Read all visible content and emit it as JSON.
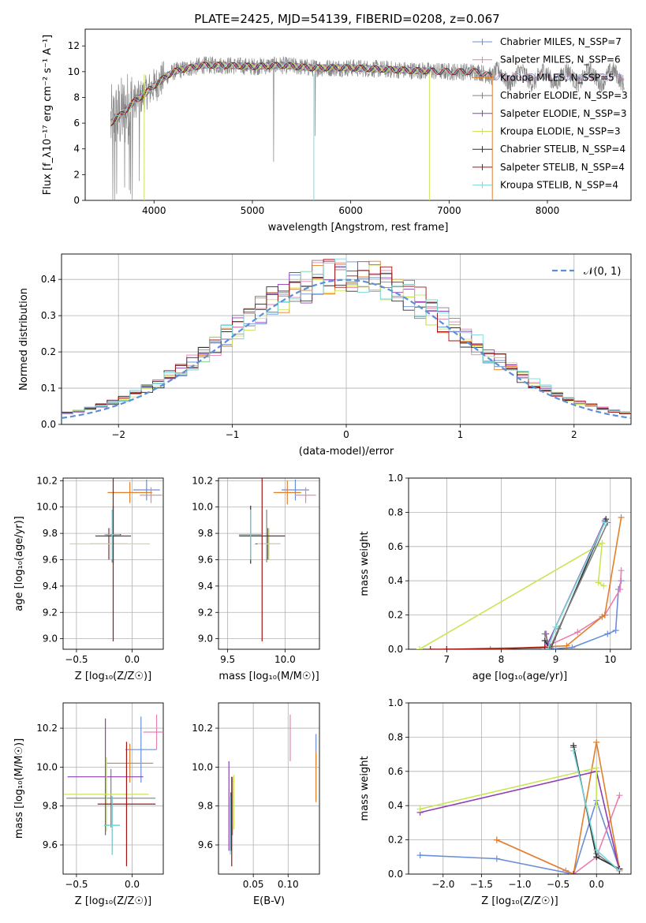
{
  "figure": {
    "title": "PLATE=2425, MJD=54139, FIBERID=0208, z=0.067"
  },
  "colors": {
    "c_miles": "#6a8fd8",
    "s_miles": "#e87fb0",
    "k_miles": "#e37f29",
    "c_elodie": "#808080",
    "s_elodie": "#8e3fb4",
    "k_elodie": "#c9e555",
    "c_stelib": "#303030",
    "s_stelib": "#a01414",
    "k_stelib": "#7ad8d8",
    "data": "#888888",
    "gauss": "#5b8fd8"
  },
  "chart_data": [
    {
      "id": "spectrum",
      "type": "line",
      "xlabel": "wavelength [Angstrom, rest frame]",
      "ylabel": "Flux [f_λ10⁻¹⁷ erg cm⁻² s⁻¹ A⁻¹]",
      "xlim": [
        3300,
        8850
      ],
      "ylim": [
        0,
        13.3
      ],
      "xticks": [
        4000,
        5000,
        6000,
        7000,
        8000
      ],
      "yticks": [
        0,
        2,
        4,
        6,
        8,
        10,
        12
      ],
      "grid": false,
      "legend": "top-right",
      "continuum": {
        "x": [
          3560,
          3700,
          3800,
          3900,
          3950,
          4000,
          4100,
          4200,
          4300,
          4500,
          4700,
          5000,
          5300,
          5600,
          6000,
          6300,
          6600,
          7000,
          7300,
          7440
        ],
        "y": [
          6.0,
          6.9,
          7.7,
          8.2,
          8.6,
          8.9,
          9.5,
          10.0,
          10.2,
          10.5,
          10.5,
          10.4,
          10.5,
          10.3,
          10.3,
          10.2,
          10.1,
          10.0,
          10.0,
          9.6
        ]
      },
      "series": [
        {
          "name": "Chabrier MILES, N_SSP=7",
          "color_key": "c_miles",
          "x_end": 8780
        },
        {
          "name": "Salpeter MILES, N_SSP=6",
          "color_key": "s_miles",
          "x_end": 8780
        },
        {
          "name": "Kroupa MILES, N_SSP=5",
          "color_key": "k_miles",
          "x_end": 7440
        },
        {
          "name": "Chabrier ELODIE, N_SSP=3",
          "color_key": "c_elodie",
          "x_end": 6800
        },
        {
          "name": "Salpeter ELODIE, N_SSP=3",
          "color_key": "s_elodie",
          "x_end": 6800
        },
        {
          "name": "Kroupa ELODIE, N_SSP=3",
          "color_key": "k_elodie",
          "x_end": 6800
        },
        {
          "name": "Chabrier STELIB, N_SSP=4",
          "color_key": "c_stelib",
          "x_end": 7440
        },
        {
          "name": "Salpeter STELIB, N_SSP=4",
          "color_key": "s_stelib",
          "x_end": 7440
        },
        {
          "name": "Kroupa STELIB, N_SSP=4",
          "color_key": "k_stelib",
          "x_end": 7440
        }
      ]
    },
    {
      "id": "residuals",
      "type": "step",
      "xlabel": "(data-model)/error",
      "ylabel": "Normed distribution",
      "xlim": [
        -2.5,
        2.5
      ],
      "ylim": [
        0,
        0.47
      ],
      "xticks": [
        -2,
        -1,
        0,
        1,
        2
      ],
      "yticks": [
        0.0,
        0.1,
        0.2,
        0.3,
        0.4
      ],
      "grid": true,
      "legend": "top-right",
      "gauss_label": "𝒩(0, 1)",
      "bin_width": 0.1,
      "series_keys": [
        "c_miles",
        "s_miles",
        "k_miles",
        "c_elodie",
        "s_elodie",
        "k_elodie",
        "c_stelib",
        "s_stelib",
        "k_stelib"
      ]
    },
    {
      "id": "z_age",
      "type": "errorbar",
      "xlabel": "Z [log₁₀(Z/Z☉)]",
      "ylabel": "age  [log₁₀(age/yr)]",
      "xlim": [
        -0.62,
        0.28
      ],
      "ylim": [
        8.92,
        10.22
      ],
      "xticks": [
        -0.5,
        0.0
      ],
      "xticklabels": [
        "−0.5",
        "0.0"
      ],
      "yticks": [
        9.0,
        9.2,
        9.4,
        9.6,
        9.8,
        10.0,
        10.2
      ],
      "grid": true,
      "points": [
        {
          "c": "c_miles",
          "x": 0.13,
          "y": 10.13,
          "xe": 0.12,
          "ye": 0.08
        },
        {
          "c": "s_miles",
          "x": 0.17,
          "y": 10.09,
          "xe": 0.1,
          "ye": 0.06
        },
        {
          "c": "k_miles",
          "x": -0.02,
          "y": 10.11,
          "xe": 0.2,
          "ye": 0.08
        },
        {
          "c": "c_elodie",
          "x": -0.18,
          "y": 9.78,
          "xe": 0.05,
          "ye": 0.2
        },
        {
          "c": "s_elodie",
          "x": -0.21,
          "y": 9.72,
          "xe": 0.17,
          "ye": 0.12
        },
        {
          "c": "k_elodie",
          "x": -0.2,
          "y": 9.72,
          "xe": 0.36,
          "ye": 0.12
        },
        {
          "c": "c_stelib",
          "x": -0.17,
          "y": 9.79,
          "xe": 0.07,
          "ye": 0.22
        },
        {
          "c": "s_stelib",
          "x": -0.17,
          "y": 9.78,
          "xe": 0.16,
          "ye": 0.8
        },
        {
          "c": "k_stelib",
          "x": -0.18,
          "y": 9.79,
          "xe": 0.07,
          "ye": 0.19
        }
      ]
    },
    {
      "id": "mass_age",
      "type": "errorbar",
      "xlabel": "mass [log₁₀(M/M☉)]",
      "ylabel": "",
      "xlim": [
        9.42,
        10.3
      ],
      "ylim": [
        8.92,
        10.22
      ],
      "xticks": [
        9.5,
        10.0
      ],
      "yticks": [
        9.0,
        9.2,
        9.4,
        9.6,
        9.8,
        10.0,
        10.2
      ],
      "grid": true,
      "points": [
        {
          "c": "c_miles",
          "x": 10.09,
          "y": 10.13,
          "xe": 0.12,
          "ye": 0.08
        },
        {
          "c": "s_miles",
          "x": 10.18,
          "y": 10.09,
          "xe": 0.09,
          "ye": 0.06
        },
        {
          "c": "k_miles",
          "x": 10.02,
          "y": 10.11,
          "xe": 0.12,
          "ye": 0.09
        },
        {
          "c": "c_elodie",
          "x": 9.84,
          "y": 9.78,
          "xe": 0.16,
          "ye": 0.2
        },
        {
          "c": "s_elodie",
          "x": 9.85,
          "y": 9.72,
          "xe": 0.11,
          "ye": 0.12
        },
        {
          "c": "k_elodie",
          "x": 9.86,
          "y": 9.72,
          "xe": 0.1,
          "ye": 0.12
        },
        {
          "c": "c_stelib",
          "x": 9.7,
          "y": 9.79,
          "xe": 0.1,
          "ye": 0.22
        },
        {
          "c": "s_stelib",
          "x": 9.8,
          "y": 9.78,
          "xe": 0.2,
          "ye": 0.8
        },
        {
          "c": "k_stelib",
          "x": 9.7,
          "y": 9.79,
          "xe": 0.1,
          "ye": 0.19
        }
      ]
    },
    {
      "id": "age_weight",
      "type": "line",
      "xlabel": "age  [log₁₀(age/yr)]",
      "ylabel": "mass weight",
      "xlim": [
        6.3,
        10.38
      ],
      "ylim": [
        0,
        1.0
      ],
      "xticks": [
        7,
        8,
        9,
        10
      ],
      "yticks": [
        0.0,
        0.2,
        0.4,
        0.6,
        0.8,
        1.0
      ],
      "grid": true,
      "lines": [
        {
          "c": "k_elodie",
          "x": [
            6.5,
            9.85,
            9.78,
            9.88
          ],
          "y": [
            0.0,
            0.62,
            0.39,
            0.37
          ]
        },
        {
          "c": "c_miles",
          "x": [
            8.8,
            9.3,
            9.95,
            10.1,
            10.15,
            10.2
          ],
          "y": [
            0.0,
            0.01,
            0.09,
            0.11,
            0.35,
            0.4
          ]
        },
        {
          "c": "s_miles",
          "x": [
            8.85,
            9.4,
            9.9,
            10.18,
            10.2
          ],
          "y": [
            0.02,
            0.1,
            0.2,
            0.35,
            0.46
          ]
        },
        {
          "c": "k_miles",
          "x": [
            7.0,
            7.8,
            9.2,
            9.85,
            9.9,
            10.2
          ],
          "y": [
            0.0,
            0.0,
            0.02,
            0.19,
            0.2,
            0.77
          ]
        },
        {
          "c": "s_elodie",
          "x": [
            8.82,
            8.85,
            9.9
          ],
          "y": [
            0.09,
            0.03,
            0.75
          ]
        },
        {
          "c": "c_stelib",
          "x": [
            8.8,
            8.9,
            9.92
          ],
          "y": [
            0.05,
            0.0,
            0.76
          ]
        },
        {
          "c": "c_elodie",
          "x": [
            8.8,
            8.9,
            9.05,
            9.95
          ],
          "y": [
            0.09,
            0.01,
            0.12,
            0.74
          ]
        },
        {
          "c": "k_stelib",
          "x": [
            8.85,
            9.0,
            9.9
          ],
          "y": [
            0.0,
            0.13,
            0.74
          ]
        },
        {
          "c": "s_stelib",
          "x": [
            6.7,
            7.0,
            8.8
          ],
          "y": [
            0.0,
            0.0,
            0.01
          ]
        }
      ]
    },
    {
      "id": "z_mass",
      "type": "errorbar",
      "xlabel": "Z [log₁₀(Z/Z☉)]",
      "ylabel": "mass [log₁₀(M/M☉)]",
      "xlim": [
        -0.62,
        0.28
      ],
      "ylim": [
        9.45,
        10.33
      ],
      "xticks": [
        -0.5,
        0.0
      ],
      "xticklabels": [
        "−0.5",
        "0.0"
      ],
      "yticks": [
        9.6,
        9.8,
        10.0,
        10.2
      ],
      "grid": true,
      "points": [
        {
          "c": "c_miles",
          "x": 0.08,
          "y": 10.09,
          "xe": 0.14,
          "ye": 0.17
        },
        {
          "c": "s_miles",
          "x": 0.22,
          "y": 10.18,
          "xe": 0.12,
          "ye": 0.09
        },
        {
          "c": "k_miles",
          "x": -0.02,
          "y": 10.02,
          "xe": 0.21,
          "ye": 0.1
        },
        {
          "c": "c_elodie",
          "x": -0.19,
          "y": 9.84,
          "xe": 0.4,
          "ye": 0.15
        },
        {
          "c": "s_elodie",
          "x": -0.24,
          "y": 9.95,
          "xe": 0.34,
          "ye": 0.3
        },
        {
          "c": "k_elodie",
          "x": -0.23,
          "y": 9.86,
          "xe": 0.38,
          "ye": 0.19
        },
        {
          "c": "c_stelib",
          "x": -0.18,
          "y": 9.7,
          "xe": 0.07,
          "ye": 0.15
        },
        {
          "c": "s_stelib",
          "x": -0.05,
          "y": 9.81,
          "xe": 0.26,
          "ye": 0.32
        },
        {
          "c": "k_stelib",
          "x": -0.18,
          "y": 9.7,
          "xe": 0.07,
          "ye": 0.15
        }
      ]
    },
    {
      "id": "ebv_mass",
      "type": "errorbar",
      "xlabel": "E(B-V)",
      "ylabel": "",
      "xlim": [
        0.0,
        0.145
      ],
      "ylim": [
        9.45,
        10.33
      ],
      "xticks": [
        0.05,
        0.1
      ],
      "xticklabels": [
        "0.05",
        "0.10"
      ],
      "yticks": [
        9.6,
        9.8,
        10.0,
        10.2
      ],
      "grid": true,
      "points": [
        {
          "c": "c_miles",
          "x": 0.14,
          "y": 10.09,
          "xe": 0.0,
          "ye": 0.08
        },
        {
          "c": "s_miles",
          "x": 0.103,
          "y": 10.15,
          "xe": 0.0,
          "ye": 0.12
        },
        {
          "c": "k_miles",
          "x": 0.14,
          "y": 9.95,
          "xe": 0.0,
          "ye": 0.13
        },
        {
          "c": "c_elodie",
          "x": 0.02,
          "y": 9.8,
          "xe": 0.0,
          "ye": 0.15
        },
        {
          "c": "s_elodie",
          "x": 0.015,
          "y": 9.8,
          "xe": 0.0,
          "ye": 0.23
        },
        {
          "c": "k_elodie",
          "x": 0.022,
          "y": 9.82,
          "xe": 0.0,
          "ye": 0.14
        },
        {
          "c": "c_stelib",
          "x": 0.018,
          "y": 9.72,
          "xe": 0.0,
          "ye": 0.15
        },
        {
          "c": "s_stelib",
          "x": 0.019,
          "y": 9.72,
          "xe": 0.0,
          "ye": 0.23
        },
        {
          "c": "k_stelib",
          "x": 0.017,
          "y": 9.7,
          "xe": 0.0,
          "ye": 0.15
        }
      ]
    },
    {
      "id": "z_weight",
      "type": "line",
      "xlabel": "Z [log₁₀(Z/Z☉)]",
      "ylabel": "mass weight",
      "xlim": [
        -2.45,
        0.45
      ],
      "ylim": [
        0,
        1.0
      ],
      "xticks": [
        -2.0,
        -1.5,
        -1.0,
        -0.5,
        0.0
      ],
      "xticklabels": [
        "−2.0",
        "−1.5",
        "−1.0",
        "−0.5",
        "0.0"
      ],
      "yticks": [
        0.0,
        0.2,
        0.4,
        0.6,
        0.8,
        1.0
      ],
      "grid": true,
      "lines": [
        {
          "c": "c_miles",
          "x": [
            -2.3,
            -1.3,
            -0.3,
            0.0,
            0.3
          ],
          "y": [
            0.11,
            0.09,
            0.0,
            0.43,
            0.03
          ]
        },
        {
          "c": "s_miles",
          "x": [
            -1.3,
            -0.4,
            -0.3,
            0.0,
            0.3
          ],
          "y": [
            0.2,
            0.02,
            0.0,
            0.1,
            0.46
          ]
        },
        {
          "c": "k_miles",
          "x": [
            -1.3,
            -0.3,
            0.0,
            0.3
          ],
          "y": [
            0.2,
            0.0,
            0.77,
            0.03
          ]
        },
        {
          "c": "s_elodie",
          "x": [
            -2.3,
            0.0,
            0.3
          ],
          "y": [
            0.36,
            0.6,
            0.02
          ]
        },
        {
          "c": "k_elodie",
          "x": [
            -2.3,
            0.0,
            0.0
          ],
          "y": [
            0.38,
            0.62,
            0.4
          ]
        },
        {
          "c": "c_elodie",
          "x": [
            -0.3,
            0.0,
            0.3
          ],
          "y": [
            0.74,
            0.12,
            0.02
          ]
        },
        {
          "c": "c_stelib",
          "x": [
            -0.3,
            0.0,
            0.3
          ],
          "y": [
            0.75,
            0.1,
            0.03
          ]
        },
        {
          "c": "k_stelib",
          "x": [
            -0.3,
            0.0,
            0.3
          ],
          "y": [
            0.72,
            0.14,
            0.02
          ]
        },
        {
          "c": "s_stelib",
          "x": [
            -0.3,
            0.3
          ],
          "y": [
            0.0,
            0.0
          ]
        }
      ]
    }
  ]
}
